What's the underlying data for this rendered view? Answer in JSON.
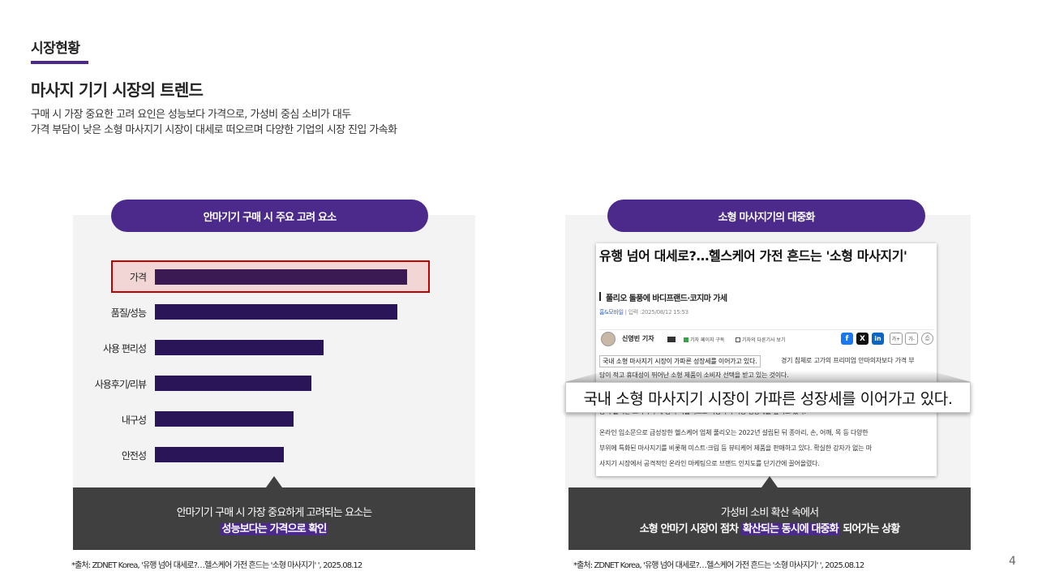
{
  "header": {
    "section_label": "시장현황",
    "title": "마사지 기기 시장의 트렌드",
    "desc_line1": "구매 시 가장 중요한 고려 요인은 성능보다 가격으로,  가성비 중심 소비가 대두",
    "desc_line2": "가격 부담이 낮은 소형 마사지기 시장이 대세로 떠오르며 다양한 기업의 시장 진입 가속화"
  },
  "left_panel": {
    "pill_title": "안마기기 구매 시 주요 고려 요소",
    "factors": [
      {
        "label": "가격",
        "value": 1.0
      },
      {
        "label": "품질/성능",
        "value": 0.96
      },
      {
        "label": "사용 편리성",
        "value": 0.67
      },
      {
        "label": "사용후기/리뷰",
        "value": 0.62
      },
      {
        "label": "내구성",
        "value": 0.55
      },
      {
        "label": "안전성",
        "value": 0.51
      }
    ],
    "callout_line1": "안마기기 구매 시 가장 중요하게 고려되는 요소는",
    "callout_highlight": "성능보다는 가격으로 확인",
    "source": "*출처: ZDNET Korea, '유행 넘어 대세로?…헬스케어 가전 흔드는 '소형 마사지기' ', 2025.08.12"
  },
  "right_panel": {
    "pill_title": "소형 마사지기의 대중화",
    "article": {
      "title": "유행 넘어 대세로?…헬스케어 가전 흔드는 '소형 마사지기'",
      "subtitle": "풀리오 돌풍에 바디프랜드·코지마 가세",
      "category": "홈&모바일",
      "date": " | 입력 :2025/08/12 15:53",
      "author": "신영빈 기자",
      "follow_label": "기자 페이지 구독",
      "other_label": "기자의 다른기사 보기",
      "share_plus": "가+",
      "share_minus": "가-",
      "quote_small": "국내 소형 마사지기 시장이 가파른 성장세를 이어가고 있다.",
      "body_top_right": "경기 침체로 고가의 프리미엄 안마의자보다 가격 부",
      "body_line2": "담이 적고 휴대성이 뛰어난 소형 제품이 소비자 선택을 받고 있는 것이다.",
      "body_line3": "중이 늘어난 크기와 무게 등이 복합적으로 작용하며 시장 성장세를 높이고 있다.",
      "body_para2_l1": "온라인 입소문으로 급성장한 헬스케어 업체 풀리오는 2022년 설립된 뒤 종아리, 손, 어깨, 목 등 다양한",
      "body_para2_l2": "부위에 특화된 마사지기를 비롯해 미스트·크림 등 뷰티케어 제품을 판매하고 있다. 확실한 강자가 없는 마",
      "body_para2_l3": "사지기 시장에서 공격적인 온라인 마케팅으로 브랜드 인지도를 단기간에 끌어올렸다."
    },
    "zoom_quote": "국내 소형 마사지기 시장이 가파른 성장세를 이어가고 있다.",
    "callout_line1": "가성비 소비 확산 속에서",
    "callout_pre": "소형 안마기 시장이 점차 ",
    "callout_highlight": "확산되는 동시에 대중화",
    "callout_post": " 되어가는 상황",
    "source": "*출처: ZDNET Korea, '유행 넘어 대세로?…헬스케어 가전 흔드는 '소형 마사지기' ', 2025.08.12"
  },
  "page_number": "4",
  "colors": {
    "accent_purple": "#4b2a8c",
    "bar_color": "#2a1558",
    "highlight_border": "#c00000",
    "callout_bg": "#404040"
  }
}
